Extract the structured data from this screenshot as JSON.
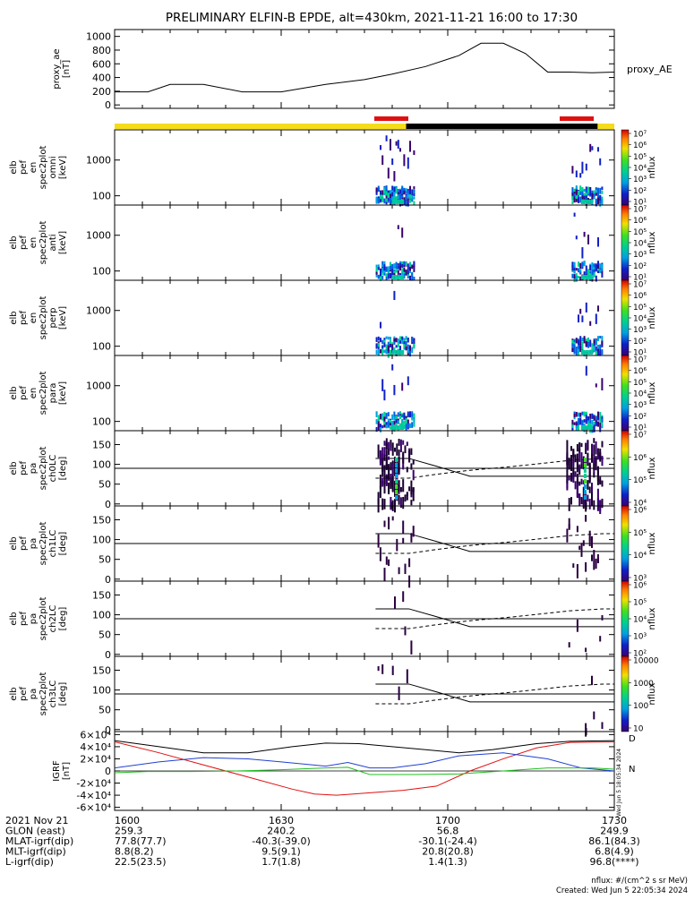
{
  "header": {
    "title": "PRELIMINARY ELFIN-B EPDE, alt=430km, 2021-11-21 16:00 to 17:30"
  },
  "bottom_rows": [
    {
      "label": "2021 Nov 21",
      "values": [
        "1600",
        "1630",
        "1700",
        "1730"
      ]
    },
    {
      "label": "GLON (east)",
      "values": [
        "259.3",
        "240.2",
        "56.8",
        "249.9"
      ]
    },
    {
      "label": "MLAT-igrf(dip)",
      "values": [
        "77.8(77.7)",
        "-40.3(-39.0)",
        "-30.1(-24.4)",
        "86.1(84.3)"
      ]
    },
    {
      "label": "MLT-igrf(dip)",
      "values": [
        "8.8(8.2)",
        "9.5(9.1)",
        "20.8(20.8)",
        "6.8(4.9)"
      ]
    },
    {
      "label": "L-igrf(dip)",
      "values": [
        "22.5(23.5)",
        "1.7(1.8)",
        "1.4(1.3)",
        "96.8(****)"
      ]
    }
  ],
  "footer": {
    "units": "nflux: #/(cm^2 s sr MeV)",
    "created": "Created: Wed Jun  5 22:05:34 2024",
    "side_stamp": "Wed Jun  5 18:05:34 2024"
  },
  "colors": {
    "day_bar": "#f5dc1a",
    "night_bar": "#000000",
    "science_zone": "#e01010",
    "bx": "#e01010",
    "by": "#2040d0",
    "bz": "#20c020",
    "bmag": "#000000",
    "ae": "#000000"
  },
  "chart_data": [
    {
      "type": "line",
      "panel": "proxy_ae",
      "ylabel_lines": [
        "proxy_ae",
        "[nT]"
      ],
      "ylim": [
        -50,
        1100
      ],
      "yticks": [
        0,
        200,
        400,
        600,
        800,
        1000
      ],
      "legend": "proxy_AE",
      "x_minutes": [
        0,
        6,
        10,
        16,
        23,
        30,
        38,
        45,
        50,
        56,
        62,
        66,
        70,
        74,
        78,
        82,
        86,
        90
      ],
      "values": [
        190,
        190,
        300,
        300,
        190,
        190,
        300,
        370,
        450,
        560,
        720,
        900,
        900,
        750,
        480,
        480,
        470,
        480
      ]
    },
    {
      "type": "heatmap",
      "panel": "spectrogram",
      "ylabel_lines": [
        "elb",
        "pef",
        "en",
        "spec2plot",
        "omni",
        "[keV]"
      ],
      "yscale": "log",
      "ylim": [
        55,
        7000
      ],
      "yticks": [
        100,
        1000
      ],
      "colorbar": {
        "label": "nflux",
        "ticks": [
          "10^1",
          "10^2",
          "10^3",
          "10^4",
          "10^5",
          "10^6",
          "10^7"
        ]
      },
      "bursts_minutes": [
        [
          48,
          54
        ],
        [
          82,
          88
        ]
      ]
    },
    {
      "type": "heatmap",
      "panel": "spectrogram",
      "ylabel_lines": [
        "elb",
        "pef",
        "en",
        "spec2plot",
        "anti",
        "[keV]"
      ],
      "yscale": "log",
      "ylim": [
        55,
        7000
      ],
      "yticks": [
        100,
        1000
      ],
      "colorbar": {
        "label": "nflux",
        "ticks": [
          "10^1",
          "10^2",
          "10^3",
          "10^4",
          "10^5",
          "10^6",
          "10^7"
        ]
      },
      "bursts_minutes": [
        [
          48,
          54
        ],
        [
          82,
          88
        ]
      ]
    },
    {
      "type": "heatmap",
      "panel": "spectrogram",
      "ylabel_lines": [
        "elb",
        "pef",
        "en",
        "spec2plot",
        "perp",
        "[keV]"
      ],
      "yscale": "log",
      "ylim": [
        55,
        7000
      ],
      "yticks": [
        100,
        1000
      ],
      "colorbar": {
        "label": "nflux",
        "ticks": [
          "10^1",
          "10^2",
          "10^3",
          "10^4",
          "10^5",
          "10^6",
          "10^7"
        ]
      },
      "bursts_minutes": [
        [
          48,
          54
        ],
        [
          82,
          88
        ]
      ]
    },
    {
      "type": "heatmap",
      "panel": "spectrogram",
      "ylabel_lines": [
        "elb",
        "pef",
        "en",
        "spec2plot",
        "para",
        "[keV]"
      ],
      "yscale": "log",
      "ylim": [
        55,
        7000
      ],
      "yticks": [
        100,
        1000
      ],
      "colorbar": {
        "label": "nflux",
        "ticks": [
          "10^1",
          "10^2",
          "10^3",
          "10^4",
          "10^5",
          "10^6",
          "10^7"
        ]
      },
      "bursts_minutes": [
        [
          48,
          54
        ],
        [
          82,
          88
        ]
      ]
    },
    {
      "type": "heatmap",
      "panel": "pitch_angle",
      "ylabel_lines": [
        "elb",
        "pef",
        "pa",
        "spec2plot",
        "ch0LC",
        "[deg]"
      ],
      "ylim": [
        -5,
        185
      ],
      "yticks": [
        0,
        50,
        100,
        150
      ],
      "colorbar": {
        "label": "nflux",
        "ticks": [
          "10^4",
          "10^5",
          "10^6",
          "10^7"
        ]
      },
      "bursts_minutes": [
        [
          48,
          54
        ],
        [
          82,
          88
        ]
      ]
    },
    {
      "type": "heatmap",
      "panel": "pitch_angle",
      "ylabel_lines": [
        "elb",
        "pef",
        "pa",
        "spec2plot",
        "ch1LC",
        "[deg]"
      ],
      "ylim": [
        -5,
        185
      ],
      "yticks": [
        0,
        50,
        100,
        150
      ],
      "colorbar": {
        "label": "nflux",
        "ticks": [
          "10^3",
          "10^4",
          "10^5",
          "10^6"
        ]
      },
      "bursts_minutes": [
        [
          48,
          54
        ],
        [
          82,
          88
        ]
      ]
    },
    {
      "type": "heatmap",
      "panel": "pitch_angle",
      "ylabel_lines": [
        "elb",
        "pef",
        "pa",
        "spec2plot",
        "ch2LC",
        "[deg]"
      ],
      "ylim": [
        -5,
        185
      ],
      "yticks": [
        0,
        50,
        100,
        150
      ],
      "colorbar": {
        "label": "nflux",
        "ticks": [
          "10^2",
          "10^3",
          "10^4",
          "10^5",
          "10^6"
        ]
      },
      "bursts_minutes": [
        [
          48,
          54
        ],
        [
          82,
          88
        ]
      ]
    },
    {
      "type": "heatmap",
      "panel": "pitch_angle",
      "ylabel_lines": [
        "elb",
        "pef",
        "pa",
        "spec2plot",
        "ch3LC",
        "[deg]"
      ],
      "ylim": [
        -5,
        185
      ],
      "yticks": [
        0,
        50,
        100,
        150
      ],
      "colorbar": {
        "label": "nflux",
        "ticks": [
          "10",
          "100",
          "1000",
          "10000"
        ]
      },
      "bursts_minutes": [
        [
          48,
          54
        ],
        [
          82,
          88
        ]
      ]
    },
    {
      "type": "line",
      "panel": "igrf",
      "ylabel_lines": [
        "IGRF",
        "[nT]"
      ],
      "ylim": [
        -65000,
        65000
      ],
      "yticks": [
        -60000,
        -40000,
        -20000,
        0,
        20000,
        40000,
        60000
      ],
      "ytick_labels": [
        "-6×10⁴",
        "-4×10⁴",
        "-2×10⁴",
        "0",
        "2×10⁴",
        "4×10⁴",
        "6×10⁴"
      ],
      "legend": [
        "D",
        "N"
      ],
      "series": [
        {
          "name": "Bx",
          "x": [
            0,
            8,
            16,
            24,
            32,
            36,
            40,
            46,
            52,
            58,
            64,
            70,
            76,
            82,
            90
          ],
          "values": [
            48000,
            30000,
            10000,
            -10000,
            -30000,
            -38000,
            -40000,
            -36000,
            -32000,
            -25000,
            0,
            20000,
            38000,
            47000,
            48000
          ]
        },
        {
          "name": "By",
          "x": [
            0,
            8,
            16,
            24,
            30,
            38,
            42,
            46,
            50,
            56,
            62,
            70,
            78,
            84,
            90
          ],
          "values": [
            5000,
            15000,
            22000,
            20000,
            15000,
            8000,
            14000,
            5000,
            5000,
            12000,
            25000,
            30000,
            20000,
            5000,
            0
          ]
        },
        {
          "name": "Bz",
          "x": [
            0,
            6,
            14,
            22,
            30,
            38,
            42,
            44,
            46,
            54,
            62,
            70,
            78,
            86,
            90
          ],
          "values": [
            -3000,
            -1000,
            -1000,
            0,
            2000,
            5000,
            6000,
            0,
            -6000,
            -6000,
            -5000,
            0,
            5000,
            5000,
            3000
          ]
        },
        {
          "name": "Bmag",
          "x": [
            0,
            8,
            16,
            24,
            32,
            38,
            44,
            50,
            56,
            62,
            68,
            76,
            82,
            90
          ],
          "values": [
            50000,
            40000,
            30000,
            30000,
            40000,
            46000,
            45000,
            40000,
            35000,
            30000,
            35000,
            45000,
            49000,
            50000
          ]
        }
      ]
    }
  ]
}
